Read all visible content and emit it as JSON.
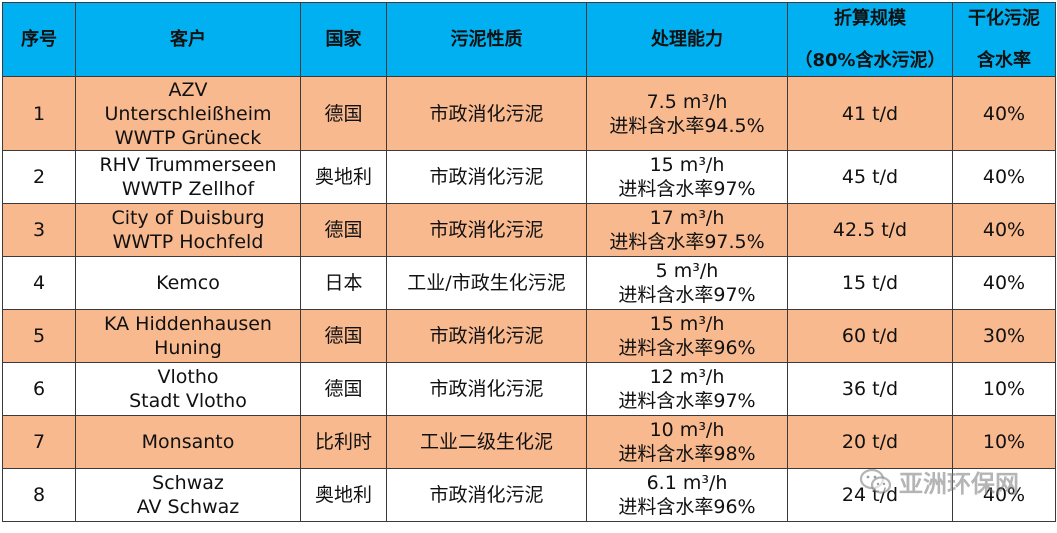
{
  "table": {
    "headers": [
      {
        "l1": "序号",
        "l2": ""
      },
      {
        "l1": "客户",
        "l2": ""
      },
      {
        "l1": "国家",
        "l2": ""
      },
      {
        "l1": "污泥性质",
        "l2": ""
      },
      {
        "l1": "处理能力",
        "l2": ""
      },
      {
        "l1": "折算规模",
        "l2": "（80%含水污泥）"
      },
      {
        "l1": "干化污泥",
        "l2": "含水率"
      }
    ],
    "rows": [
      {
        "no": "1",
        "client": [
          "AZV",
          "Unterschleißheim",
          "WWTP Grüneck"
        ],
        "country": "德国",
        "sludge": "市政消化污泥",
        "capacity": [
          "7.5 m³/h",
          "进料含水率94.5%"
        ],
        "scale": "41 t/d",
        "moisture": "40%"
      },
      {
        "no": "2",
        "client": [
          "RHV Trummerseen",
          "WWTP Zellhof"
        ],
        "country": "奥地利",
        "sludge": "市政消化污泥",
        "capacity": [
          "15 m³/h",
          "进料含水率97%"
        ],
        "scale": "45 t/d",
        "moisture": "40%"
      },
      {
        "no": "3",
        "client": [
          "City of Duisburg",
          "WWTP Hochfeld"
        ],
        "country": "德国",
        "sludge": "市政消化污泥",
        "capacity": [
          "17 m³/h",
          "进料含水率97.5%"
        ],
        "scale": "42.5 t/d",
        "moisture": "40%"
      },
      {
        "no": "4",
        "client": [
          "Kemco"
        ],
        "country": "日本",
        "sludge": "工业/市政生化污泥",
        "capacity": [
          "5 m³/h",
          "进料含水率97%"
        ],
        "scale": "15 t/d",
        "moisture": "40%"
      },
      {
        "no": "5",
        "client": [
          "KA Hiddenhausen",
          "Huning"
        ],
        "country": "德国",
        "sludge": "市政消化污泥",
        "capacity": [
          "15 m³/h",
          "进料含水率96%"
        ],
        "scale": "60 t/d",
        "moisture": "30%"
      },
      {
        "no": "6",
        "client": [
          "Vlotho",
          "Stadt Vlotho"
        ],
        "country": "德国",
        "sludge": "市政消化污泥",
        "capacity": [
          "12 m³/h",
          "进料含水率97%"
        ],
        "scale": "36 t/d",
        "moisture": "10%"
      },
      {
        "no": "7",
        "client": [
          "Monsanto"
        ],
        "country": "比利时",
        "sludge": "工业二级生化泥",
        "capacity": [
          "10 m³/h",
          "进料含水率98%"
        ],
        "scale": "20 t/d",
        "moisture": "10%"
      },
      {
        "no": "8",
        "client": [
          "Schwaz",
          "AV Schwaz"
        ],
        "country": "奥地利",
        "sludge": "市政消化污泥",
        "capacity": [
          "6.1 m³/h",
          "进料含水率96%"
        ],
        "scale": "24 t/d",
        "moisture": "40%"
      }
    ]
  },
  "watermark": {
    "text": "亚洲环保网",
    "icon": "wechat-icon"
  },
  "colors": {
    "header_bg": "#00b0f0",
    "odd_row_bg": "#f8b98f",
    "even_row_bg": "#ffffff",
    "border": "#3a3a3a"
  }
}
